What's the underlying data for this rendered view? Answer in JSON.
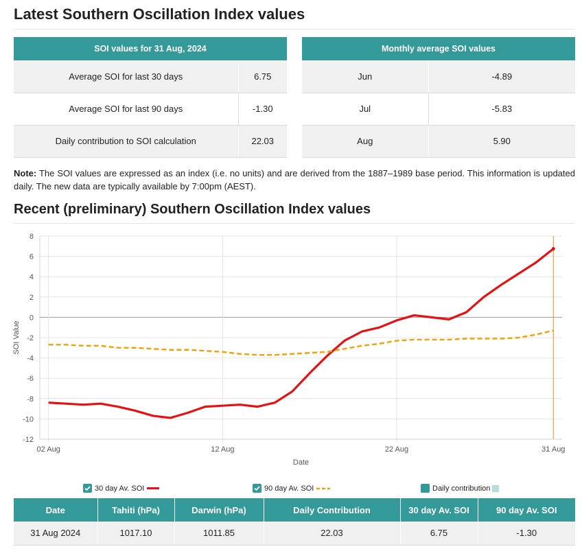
{
  "headings": {
    "latest": "Latest Southern Oscillation Index values",
    "recent": "Recent (preliminary) Southern Oscillation Index values"
  },
  "soi_table": {
    "header": "SOI values for 31 Aug, 2024",
    "rows": [
      {
        "label": "Average SOI for last 30 days",
        "value": "6.75"
      },
      {
        "label": "Average SOI for last 90 days",
        "value": "-1.30"
      },
      {
        "label": "Daily contribution to SOI calculation",
        "value": "22.03"
      }
    ]
  },
  "monthly_table": {
    "header": "Monthly average SOI values",
    "rows": [
      {
        "month": "Jun",
        "value": "-4.89"
      },
      {
        "month": "Jul",
        "value": "-5.83"
      },
      {
        "month": "Aug",
        "value": "5.90"
      }
    ]
  },
  "note": {
    "label": "Note:",
    "text": " The SOI values are expressed as an index (i.e. no units) and are derived from the 1887–1989 base period. This information is updated daily. The new data are typically available by 7:00pm (AEST)."
  },
  "chart_data": {
    "type": "line",
    "xlabel": "Date",
    "ylabel": "SOI Value",
    "ylim": [
      -12,
      8
    ],
    "yticks": [
      8,
      6,
      4,
      2,
      0,
      -2,
      -4,
      -6,
      -8,
      -10,
      -12
    ],
    "xticks": [
      {
        "day": 2,
        "label": "02 Aug"
      },
      {
        "day": 12,
        "label": "12 Aug"
      },
      {
        "day": 22,
        "label": "22 Aug"
      },
      {
        "day": 31,
        "label": "31 Aug"
      }
    ],
    "x": [
      2,
      3,
      4,
      5,
      6,
      7,
      8,
      9,
      10,
      11,
      12,
      13,
      14,
      15,
      16,
      17,
      18,
      19,
      20,
      21,
      22,
      23,
      24,
      25,
      26,
      27,
      28,
      29,
      30,
      31
    ],
    "series": [
      {
        "name": "30 day Av. SOI",
        "color": "#e81010",
        "style": "solid",
        "values": [
          -8.4,
          -8.5,
          -8.6,
          -8.5,
          -8.8,
          -9.2,
          -9.7,
          -9.9,
          -9.4,
          -8.8,
          -8.7,
          -8.6,
          -8.8,
          -8.4,
          -7.3,
          -5.5,
          -3.8,
          -2.3,
          -1.4,
          -1.0,
          -0.3,
          0.2,
          0.0,
          -0.2,
          0.5,
          2.0,
          3.2,
          4.3,
          5.4,
          6.75
        ]
      },
      {
        "name": "90 day Av. SOI",
        "color": "#f5a000",
        "style": "dashed",
        "values": [
          -2.7,
          -2.7,
          -2.8,
          -2.8,
          -3.0,
          -3.0,
          -3.1,
          -3.2,
          -3.2,
          -3.3,
          -3.4,
          -3.6,
          -3.7,
          -3.7,
          -3.6,
          -3.5,
          -3.4,
          -3.1,
          -2.8,
          -2.6,
          -2.3,
          -2.2,
          -2.2,
          -2.2,
          -2.1,
          -2.1,
          -2.1,
          -2.0,
          -1.7,
          -1.3
        ]
      }
    ],
    "highlight_day": 31
  },
  "legend": {
    "items": [
      "30 day Av. SOI",
      "90 day Av. SOI",
      "Daily contribution"
    ]
  },
  "daily_table": {
    "columns": [
      "Date",
      "Tahiti (hPa)",
      "Darwin (hPa)",
      "Daily Contribution",
      "30 day Av. SOI",
      "90 day Av. SOI"
    ],
    "row": [
      "31 Aug 2024",
      "1017.10",
      "1011.85",
      "22.03",
      "6.75",
      "-1.30"
    ]
  }
}
